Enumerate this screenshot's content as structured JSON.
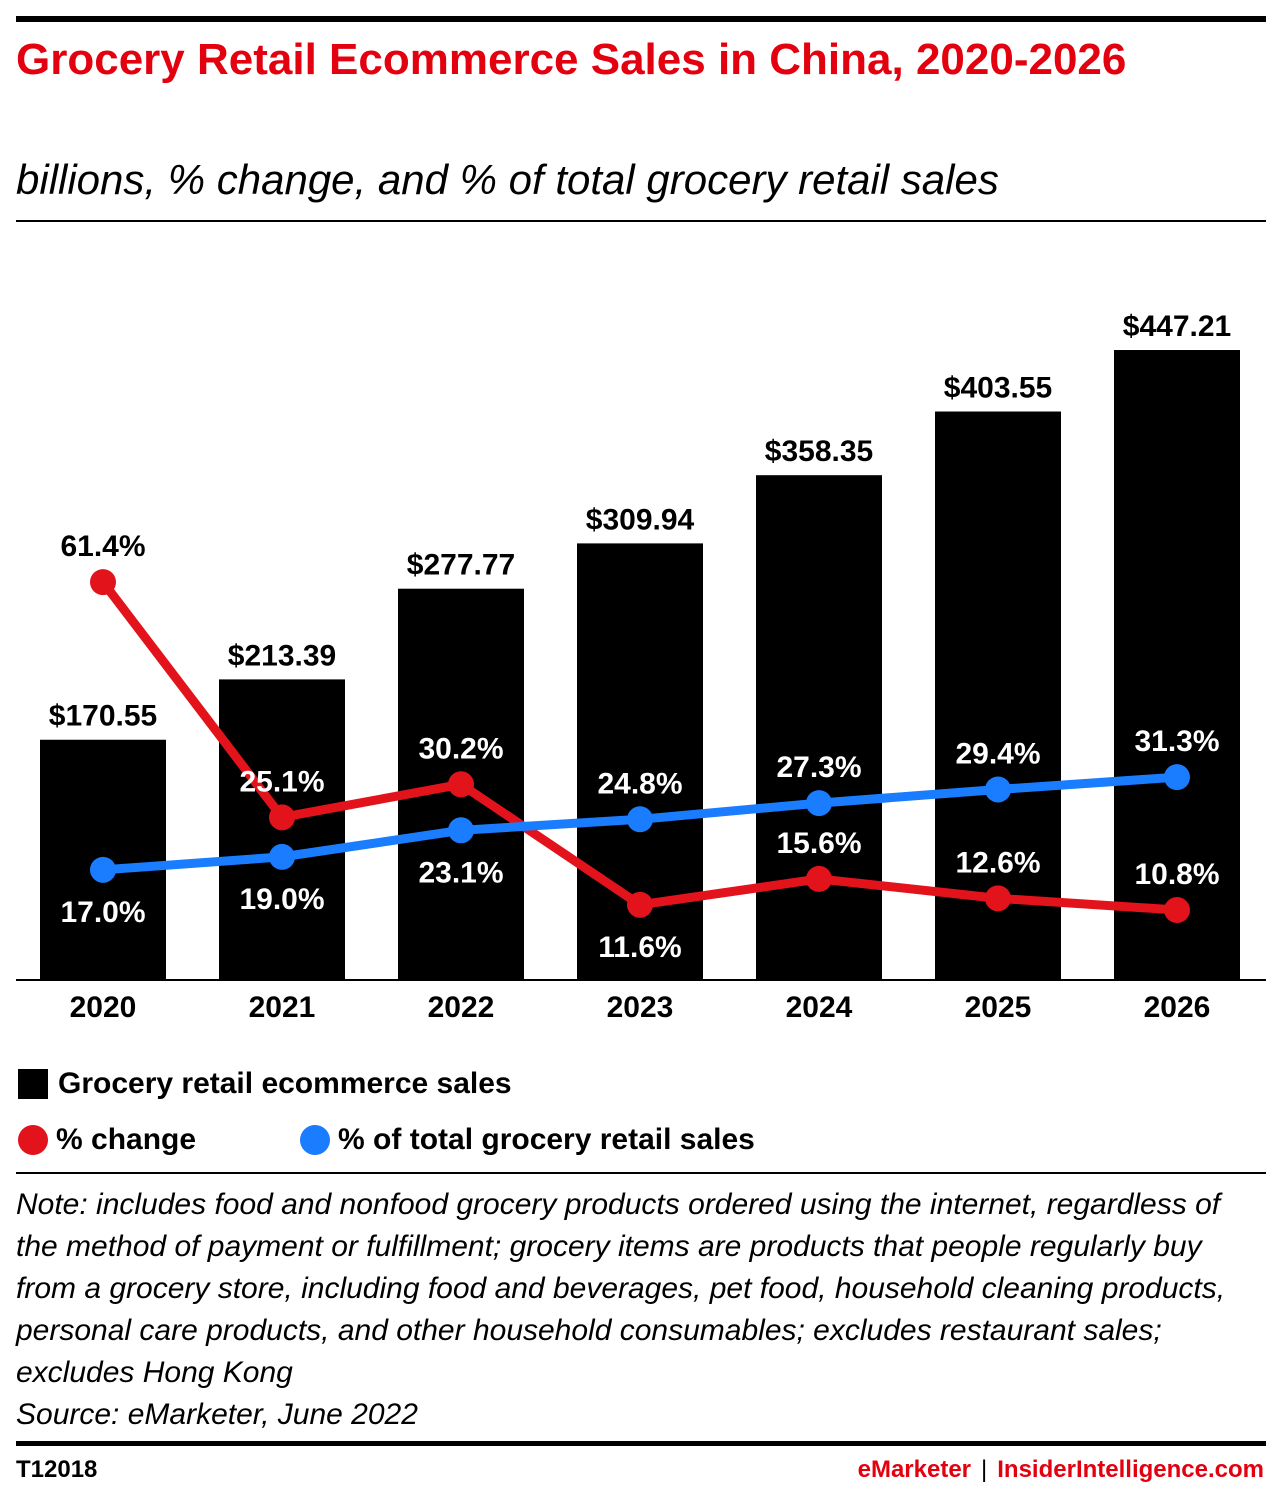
{
  "title": "Grocery Retail Ecommerce Sales in China, 2020-2026",
  "subtitle": "billions, % change, and % of total grocery retail sales",
  "chart_data": {
    "type": "bar",
    "categories": [
      "2020",
      "2021",
      "2022",
      "2023",
      "2024",
      "2025",
      "2026"
    ],
    "bar_series": {
      "name": "Grocery retail ecommerce sales",
      "values": [
        170.55,
        213.39,
        277.77,
        309.94,
        358.35,
        403.55,
        447.21
      ],
      "labels": [
        "$170.55",
        "$213.39",
        "$277.77",
        "$309.94",
        "$358.35",
        "$403.55",
        "$447.21"
      ],
      "color": "#000000"
    },
    "line_series": [
      {
        "name": "% change",
        "values": [
          61.4,
          25.1,
          30.2,
          11.6,
          15.6,
          12.6,
          10.8
        ],
        "labels": [
          "61.4%",
          "25.1%",
          "30.2%",
          "11.6%",
          "15.6%",
          "12.6%",
          "10.8%"
        ],
        "label_sides": [
          "above",
          "above",
          "above",
          "below",
          "above",
          "above",
          "above"
        ],
        "color": "#e3131b"
      },
      {
        "name": "% of total grocery retail sales",
        "values": [
          17.0,
          19.0,
          23.1,
          24.8,
          27.3,
          29.4,
          31.3
        ],
        "labels": [
          "17.0%",
          "19.0%",
          "23.1%",
          "24.8%",
          "27.3%",
          "29.4%",
          "31.3%"
        ],
        "label_sides": [
          "below",
          "below",
          "below",
          "above",
          "above",
          "above",
          "above"
        ],
        "color": "#1a7cff"
      }
    ],
    "ylim": [
      0,
      460
    ],
    "line_ylim": [
      0,
      100
    ],
    "grid": false,
    "legend_position": "bottom-left"
  },
  "note": "Note: includes food and nonfood grocery products ordered using the internet, regardless of the method of payment or fulfillment; grocery items are products that people regularly buy from a grocery store, including food and beverages, pet food, household cleaning products, personal care products, and other household consumables; excludes restaurant sales; excludes Hong Kong",
  "source": "Source: eMarketer, June 2022",
  "footer": {
    "chart_id": "T12018",
    "brand_left": "eMarketer",
    "separator": "|",
    "brand_right": "InsiderIntelligence.com"
  }
}
